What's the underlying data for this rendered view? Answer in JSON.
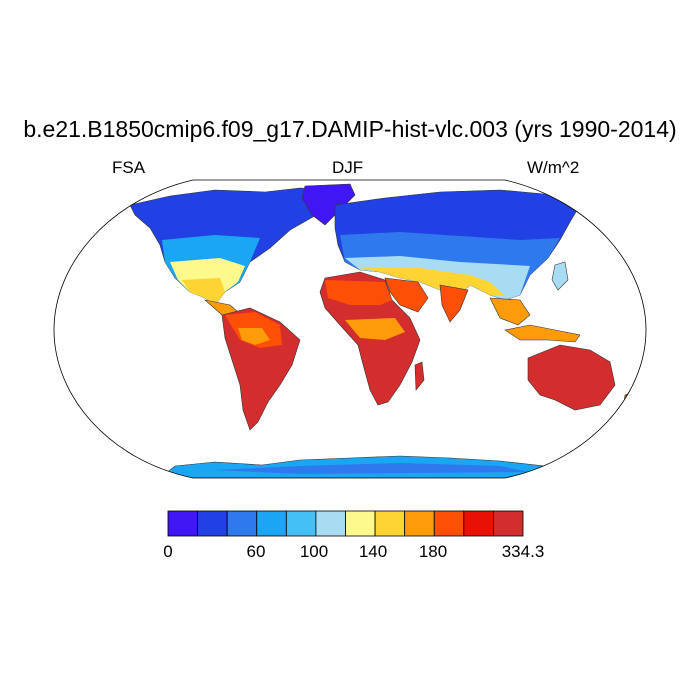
{
  "title": "b.e21.B1850cmip6.f09_g17.DAMIP-hist-vlc.003 (yrs 1990-2014)",
  "left_label": "FSA",
  "center_label": "DJF",
  "right_label": "W/m^2",
  "colorbar": {
    "colors": [
      "#4116f5",
      "#2241e4",
      "#2f79ee",
      "#1aa6f2",
      "#45c0f5",
      "#a8dcf3",
      "#fdf98c",
      "#fdd431",
      "#fd9b0a",
      "#fd4f05",
      "#e81104",
      "#d42d2d"
    ],
    "labels": [
      "0",
      "60",
      "100",
      "140",
      "180",
      "334.3"
    ]
  }
}
